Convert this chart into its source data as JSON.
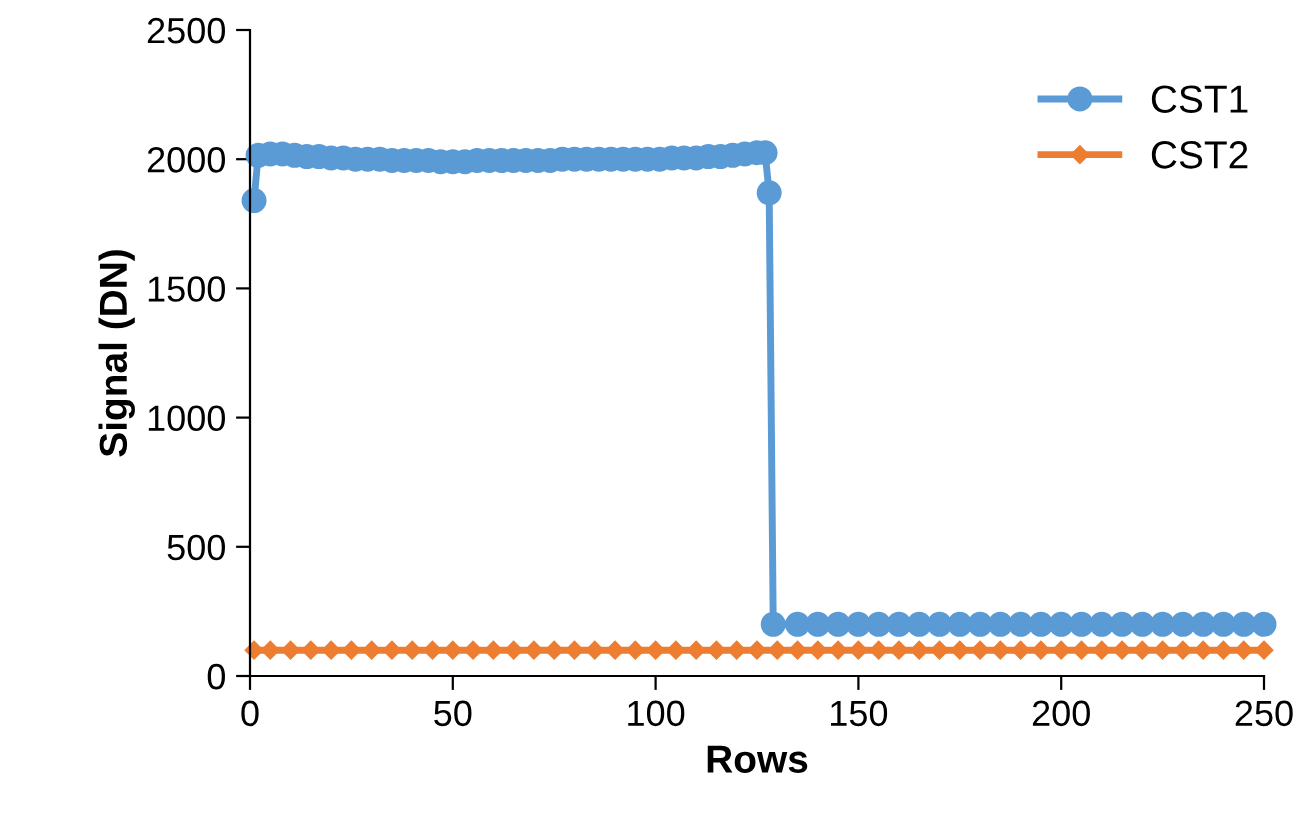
{
  "chart_data": {
    "type": "line",
    "xlabel": "Rows",
    "ylabel": "Signal (DN)",
    "xlim": [
      0,
      250
    ],
    "ylim": [
      0,
      2500
    ],
    "xticks": [
      0,
      50,
      100,
      150,
      200,
      250
    ],
    "yticks": [
      0,
      500,
      1000,
      1500,
      2000,
      2500
    ],
    "grid": false,
    "legend": "top right",
    "line_style": "solid",
    "series": [
      {
        "name": "CST1",
        "color": "#5b9bd5",
        "marker": "circle",
        "x": [
          1,
          2,
          5,
          8,
          11,
          14,
          17,
          20,
          23,
          26,
          29,
          32,
          35,
          38,
          41,
          44,
          47,
          50,
          53,
          56,
          59,
          62,
          65,
          68,
          71,
          74,
          77,
          80,
          83,
          86,
          89,
          92,
          95,
          98,
          101,
          104,
          107,
          110,
          113,
          116,
          119,
          122,
          125,
          127,
          128,
          129,
          135,
          140,
          145,
          150,
          155,
          160,
          165,
          170,
          175,
          180,
          185,
          190,
          195,
          200,
          205,
          210,
          215,
          220,
          225,
          230,
          235,
          240,
          245,
          250
        ],
        "values": [
          1840,
          2015,
          2020,
          2020,
          2015,
          2010,
          2010,
          2005,
          2005,
          2000,
          2000,
          2000,
          1995,
          1995,
          1995,
          1995,
          1990,
          1990,
          1990,
          1995,
          1995,
          1995,
          1995,
          1995,
          1995,
          1995,
          2000,
          2000,
          2000,
          2000,
          2000,
          2000,
          2000,
          2000,
          2000,
          2005,
          2005,
          2005,
          2010,
          2010,
          2015,
          2020,
          2025,
          2025,
          1870,
          200,
          200,
          200,
          200,
          200,
          200,
          200,
          200,
          200,
          200,
          200,
          200,
          200,
          200,
          200,
          200,
          200,
          200,
          200,
          200,
          200,
          200,
          200,
          200,
          200
        ]
      },
      {
        "name": "CST2",
        "color": "#ed7d31",
        "marker": "diamond",
        "x": [
          1,
          5,
          10,
          15,
          20,
          25,
          30,
          35,
          40,
          45,
          50,
          55,
          60,
          65,
          70,
          75,
          80,
          85,
          90,
          95,
          100,
          105,
          110,
          115,
          120,
          125,
          130,
          135,
          140,
          145,
          150,
          155,
          160,
          165,
          170,
          175,
          180,
          185,
          190,
          195,
          200,
          205,
          210,
          215,
          220,
          225,
          230,
          235,
          240,
          245,
          250
        ],
        "values": [
          100,
          100,
          100,
          100,
          100,
          100,
          100,
          100,
          100,
          100,
          100,
          100,
          100,
          100,
          100,
          100,
          100,
          100,
          100,
          100,
          100,
          100,
          100,
          100,
          100,
          100,
          100,
          100,
          100,
          100,
          100,
          100,
          100,
          100,
          100,
          100,
          100,
          100,
          100,
          100,
          100,
          100,
          100,
          100,
          100,
          100,
          100,
          100,
          100,
          100,
          100
        ]
      }
    ]
  }
}
